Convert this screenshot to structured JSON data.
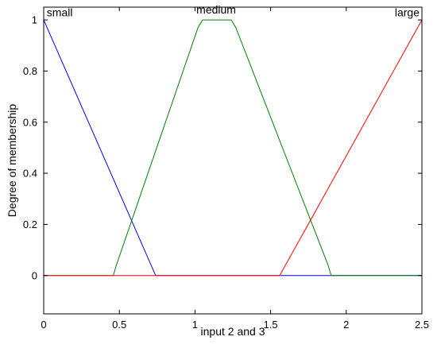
{
  "chart_data": {
    "type": "line",
    "xlabel": "input 2 and 3",
    "ylabel": "Degree of membership",
    "xlim": [
      0,
      2.5
    ],
    "ylim": [
      -0.15,
      1.05
    ],
    "xticks": [
      0,
      0.5,
      1,
      1.5,
      2,
      2.5
    ],
    "xtick_labels": [
      "0",
      "0.5",
      "1",
      "1.5",
      "2",
      "2.5"
    ],
    "yticks": [
      0,
      0.2,
      0.4,
      0.6,
      0.8,
      1
    ],
    "ytick_labels": [
      "0",
      "0.2",
      "0.4",
      "0.6",
      "0.8",
      "1"
    ],
    "grid": false,
    "series": [
      {
        "name": "small",
        "color": "#0000ff",
        "x": [
          0,
          0.74,
          2.5
        ],
        "y": [
          1,
          0,
          0
        ]
      },
      {
        "name": "medium",
        "color": "#008000",
        "x": [
          0,
          0.46,
          0.48,
          1.02,
          1.05,
          1.24,
          1.27,
          1.88,
          1.9,
          2.5
        ],
        "y": [
          0,
          0,
          0.04,
          0.97,
          1,
          1,
          0.97,
          0.04,
          0,
          0
        ]
      },
      {
        "name": "large",
        "color": "#ff0000",
        "x": [
          0,
          1.56,
          2.5
        ],
        "y": [
          0,
          0,
          1
        ]
      }
    ],
    "curve_labels": [
      {
        "text": "small",
        "x": 0.02,
        "y": 1.03
      },
      {
        "text": "medium",
        "x": 1.14,
        "y": 1.04
      },
      {
        "text": "large",
        "x": 2.41,
        "y": 1.03
      }
    ]
  }
}
